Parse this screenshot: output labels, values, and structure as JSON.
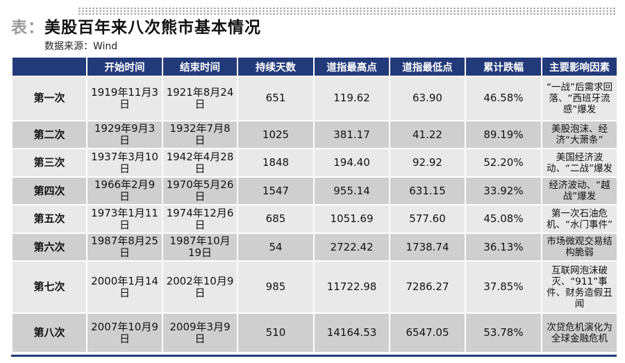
{
  "header": {
    "prefix": "表：",
    "title": "美股百年来八次熊市基本情况",
    "source": "数据来源：Wind"
  },
  "table": {
    "columns": [
      "",
      "开始时间",
      "结束时间",
      "持续天数",
      "道指最高点",
      "道指最低点",
      "累计跌幅",
      "主要影响因素"
    ],
    "rows": [
      {
        "label": "第一次",
        "start": "1919年11月3日",
        "end": "1921年8月24日",
        "days": "651",
        "high": "119.62",
        "low": "63.90",
        "drop": "46.58%",
        "factor": "“一战”后需求回落、“西班牙流感”爆发"
      },
      {
        "label": "第二次",
        "start": "1929年9月3日",
        "end": "1932年7月8日",
        "days": "1025",
        "high": "381.17",
        "low": "41.22",
        "drop": "89.19%",
        "factor": "美股泡沫、经济“大萧条”"
      },
      {
        "label": "第三次",
        "start": "1937年3月10日",
        "end": "1942年4月28日",
        "days": "1848",
        "high": "194.40",
        "low": "92.92",
        "drop": "52.20%",
        "factor": "美国经济波动、“二战”爆发"
      },
      {
        "label": "第四次",
        "start": "1966年2月9日",
        "end": "1970年5月26日",
        "days": "1547",
        "high": "955.14",
        "low": "631.15",
        "drop": "33.92%",
        "factor": "经济波动、“越战”爆发"
      },
      {
        "label": "第五次",
        "start": "1973年1月11日",
        "end": "1974年12月6日",
        "days": "685",
        "high": "1051.69",
        "low": "577.60",
        "drop": "45.08%",
        "factor": "第一次石油危机、“水门事件”"
      },
      {
        "label": "第六次",
        "start": "1987年8月25日",
        "end": "1987年10月19日",
        "days": "54",
        "high": "2722.42",
        "low": "1738.74",
        "drop": "36.13%",
        "factor": "市场微观交易结构脆弱"
      },
      {
        "label": "第七次",
        "start": "2000年1月14日",
        "end": "2002年10月9日",
        "days": "985",
        "high": "11722.98",
        "low": "7286.27",
        "drop": "37.85%",
        "factor": "互联网泡沫破灭、“911”事件、财务造假丑闻"
      },
      {
        "label": "第八次",
        "start": "2007年10月9日",
        "end": "2009年3月9日",
        "days": "510",
        "high": "14164.53",
        "low": "6547.05",
        "drop": "53.78%",
        "factor": "次贷危机演化为全球金融危机"
      }
    ]
  }
}
